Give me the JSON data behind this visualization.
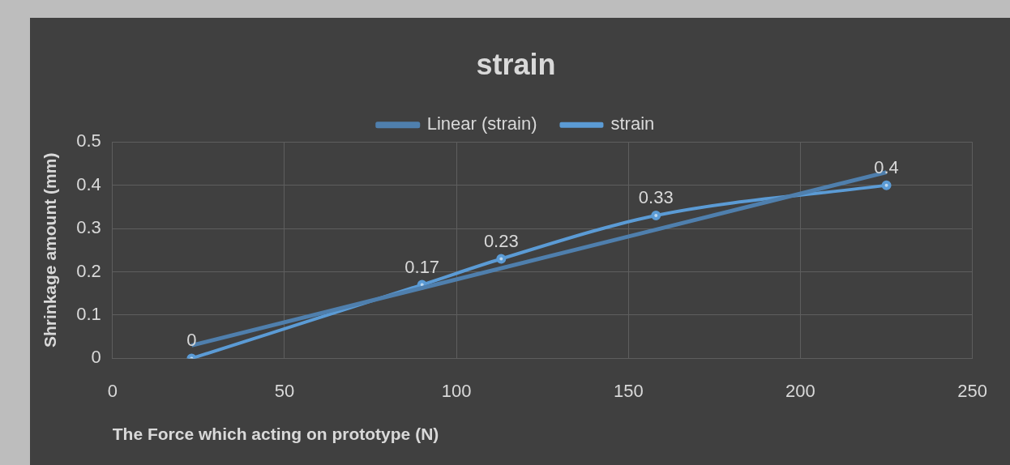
{
  "chart_data": {
    "type": "line",
    "title": "strain",
    "xlabel": "The Force which acting on prototype (N)",
    "ylabel": "Shrinkage amount (mm)",
    "series": [
      {
        "name": "strain",
        "color": "#5b9bd5",
        "x": [
          23,
          90,
          113,
          158,
          225
        ],
        "values": [
          0,
          0.17,
          0.23,
          0.33,
          0.4
        ],
        "marker": "circle",
        "data_labels": true
      },
      {
        "name": "Linear (strain)",
        "type": "line",
        "color": "#4f7fad",
        "x": [
          23,
          225
        ],
        "values": [
          0.03,
          0.43
        ],
        "marker": "none"
      }
    ],
    "xlim": [
      0,
      250
    ],
    "xticks": [
      0,
      50,
      100,
      150,
      200,
      250
    ],
    "ylim": [
      0,
      0.5
    ],
    "yticks": [
      0,
      0.1,
      0.2,
      0.3,
      0.4,
      0.5
    ],
    "grid": true,
    "legend": "top",
    "line_style": "solid"
  }
}
